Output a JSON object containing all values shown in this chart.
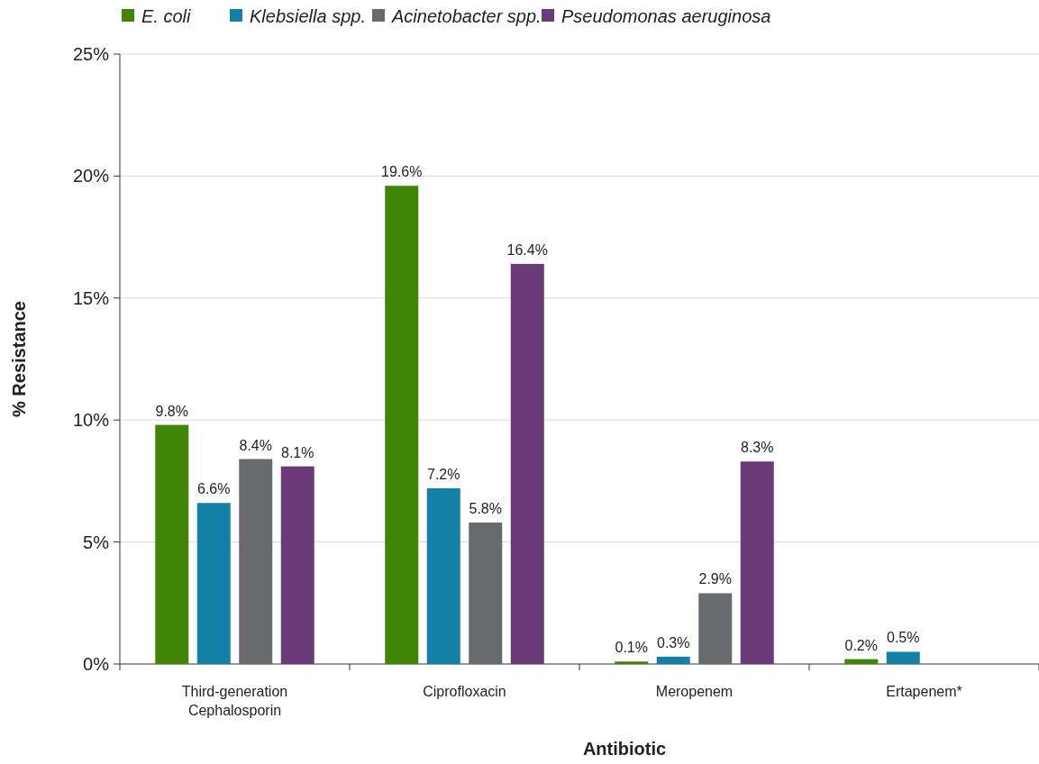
{
  "chart_data": {
    "type": "bar",
    "xlabel": "Antibiotic",
    "ylabel": "% Resistance",
    "categories": [
      "Third-generation Cephalosporin",
      "Ciprofloxacin",
      "Meropenem",
      "Ertapenem*"
    ],
    "series": [
      {
        "name": "E. coli",
        "color": "#3f8506",
        "values": [
          9.8,
          19.6,
          0.1,
          0.2
        ],
        "value_labels": [
          "9.8%",
          "19.6%",
          "0.1%",
          "0.2%"
        ]
      },
      {
        "name": "Klebsiella spp.",
        "color": "#1380a8",
        "values": [
          6.6,
          7.2,
          0.3,
          0.5
        ],
        "value_labels": [
          "6.6%",
          "7.2%",
          "0.3%",
          "0.5%"
        ]
      },
      {
        "name": "Acinetobacter spp.",
        "color": "#696a6e",
        "values": [
          8.4,
          5.8,
          2.9,
          null
        ],
        "value_labels": [
          "8.4%",
          "5.8%",
          "2.9%",
          null
        ]
      },
      {
        "name": "Pseudomonas aeruginosa",
        "color": "#6b3a78",
        "values": [
          8.1,
          16.4,
          8.3,
          null
        ],
        "value_labels": [
          "8.1%",
          "16.4%",
          "8.3%",
          null
        ]
      }
    ],
    "ylim": [
      0,
      25
    ],
    "yticks": [
      {
        "value": 0,
        "label": "0%"
      },
      {
        "value": 5,
        "label": "5%"
      },
      {
        "value": 10,
        "label": "10%"
      },
      {
        "value": 15,
        "label": "15%"
      },
      {
        "value": 20,
        "label": "20%"
      },
      {
        "value": 25,
        "label": "25%"
      }
    ],
    "grid": "y",
    "legend": "top"
  }
}
